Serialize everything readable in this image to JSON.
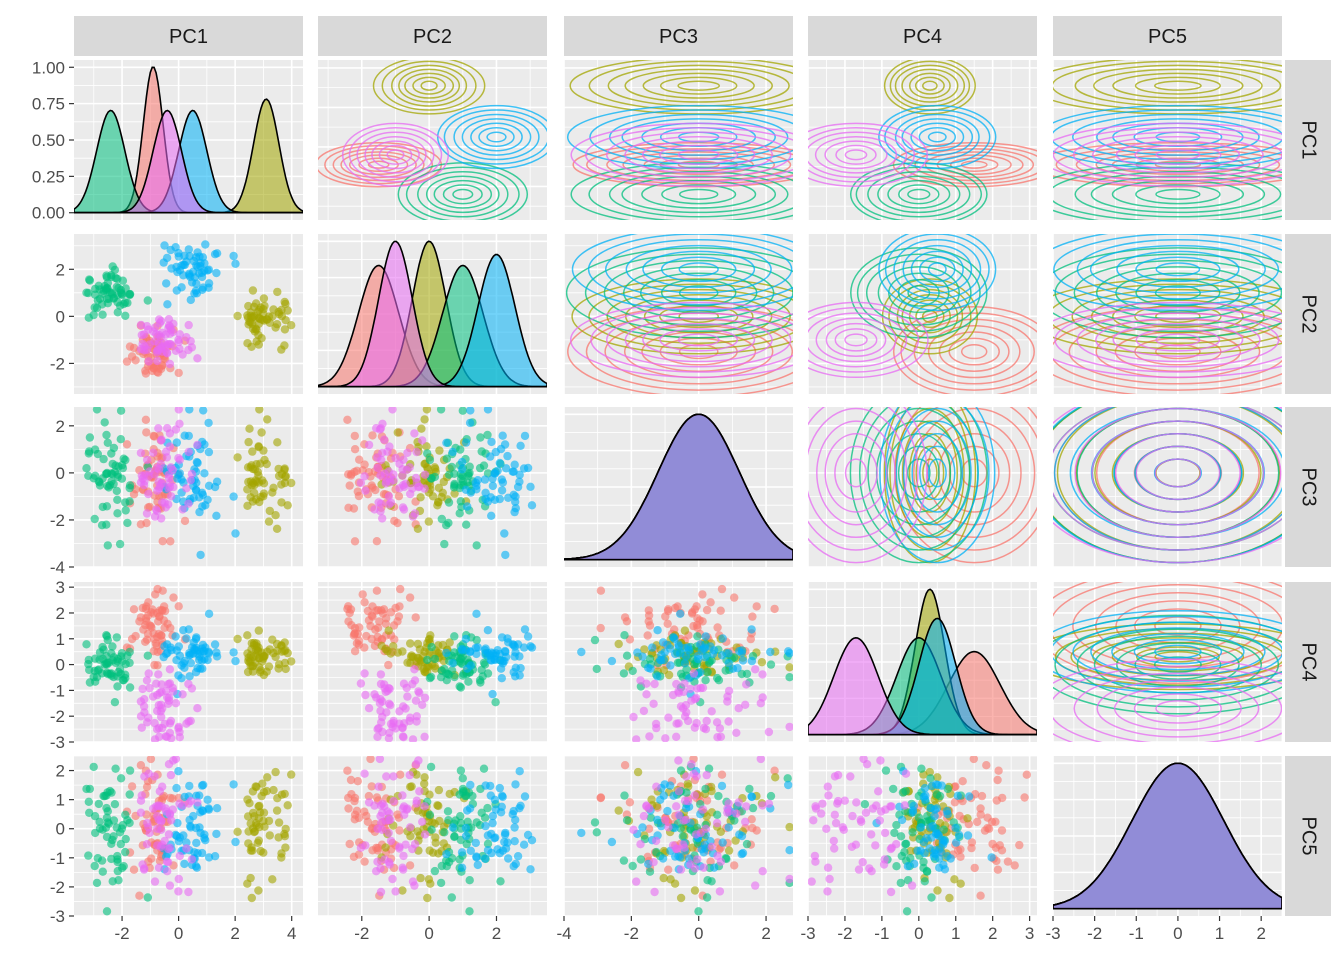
{
  "chart_data": {
    "type": "scatter-matrix",
    "title": "",
    "variables": [
      "PC1",
      "PC2",
      "PC3",
      "PC4",
      "PC5"
    ],
    "groups": [
      {
        "color": "#F8766D",
        "means": {
          "PC1": -0.9,
          "PC2": -1.5,
          "PC3": 0.0,
          "PC4": 1.5,
          "PC5": 0.0
        },
        "sd": {
          "PC1": 0.35,
          "PC2": 0.6,
          "PC3": 1.2,
          "PC4": 0.7,
          "PC5": 1.1
        }
      },
      {
        "color": "#A3A500",
        "means": {
          "PC1": 3.1,
          "PC2": 0.0,
          "PC3": 0.0,
          "PC4": 0.3,
          "PC5": 0.0
        },
        "sd": {
          "PC1": 0.45,
          "PC2": 0.5,
          "PC3": 1.2,
          "PC4": 0.4,
          "PC5": 1.1
        }
      },
      {
        "color": "#00BF7D",
        "means": {
          "PC1": -2.4,
          "PC2": 1.0,
          "PC3": 0.0,
          "PC4": 0.0,
          "PC5": 0.0
        },
        "sd": {
          "PC1": 0.5,
          "PC2": 0.6,
          "PC3": 1.2,
          "PC4": 0.6,
          "PC5": 1.1
        }
      },
      {
        "color": "#00B0F6",
        "means": {
          "PC1": 0.5,
          "PC2": 2.0,
          "PC3": 0.0,
          "PC4": 0.5,
          "PC5": 0.0
        },
        "sd": {
          "PC1": 0.5,
          "PC2": 0.55,
          "PC3": 1.2,
          "PC4": 0.5,
          "PC5": 1.1
        }
      },
      {
        "color": "#E76BF3",
        "means": {
          "PC1": -0.4,
          "PC2": -1.0,
          "PC3": 0.0,
          "PC4": -1.7,
          "PC5": 0.0
        },
        "sd": {
          "PC1": 0.5,
          "PC2": 0.5,
          "PC3": 1.2,
          "PC4": 0.6,
          "PC5": 1.1
        }
      }
    ],
    "axes": {
      "PC1": {
        "range": [
          -3.7,
          4.4
        ],
        "ticks": [
          -2,
          0,
          2,
          4
        ]
      },
      "PC2": {
        "range": [
          -3.3,
          3.5
        ],
        "ticks": [
          -2,
          0,
          2
        ]
      },
      "PC3": {
        "range": [
          -4.0,
          2.8
        ],
        "ticks": [
          -4,
          -2,
          0,
          2
        ]
      },
      "PC4": {
        "range": [
          -3.0,
          3.2
        ],
        "ticks": [
          -3,
          -2,
          -1,
          0,
          1,
          2,
          3
        ]
      },
      "PC5": {
        "range": [
          -3.0,
          2.5
        ],
        "ticks": [
          -3,
          -2,
          -1,
          0,
          1,
          2
        ]
      }
    },
    "density_axis": {
      "range": [
        -0.05,
        1.05
      ],
      "ticks": [
        "0.00",
        "0.25",
        "0.50",
        "0.75",
        "1.00"
      ]
    },
    "panels": {
      "lower": "scatter",
      "diagonal": "density",
      "upper": "density-2d-contour"
    },
    "grid": true,
    "legend": "none"
  }
}
